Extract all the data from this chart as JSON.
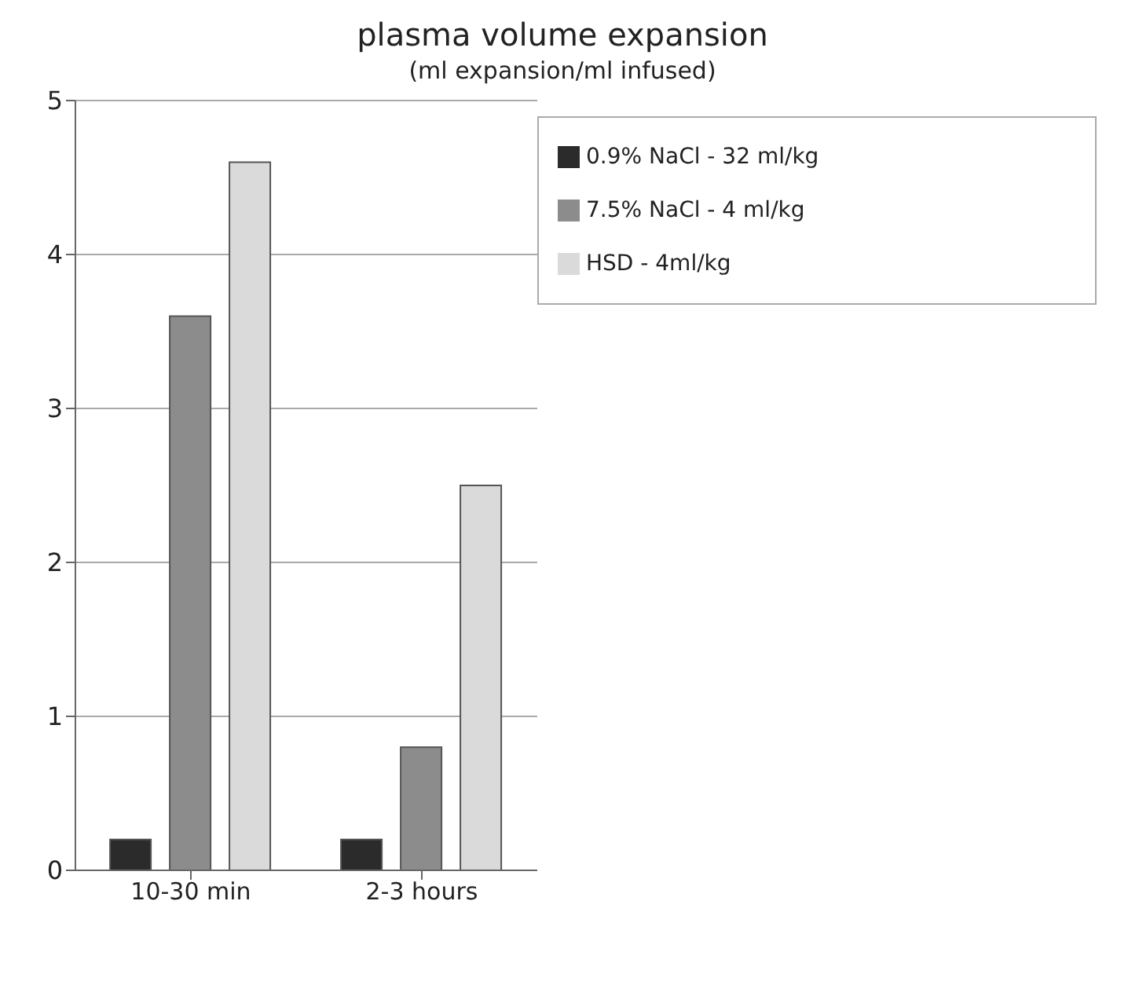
{
  "chart_data": {
    "type": "bar",
    "title": "plasma volume expansion",
    "subtitle": "(ml expansion/ml infused)",
    "categories": [
      "10-30 min",
      "2-3 hours"
    ],
    "series": [
      {
        "name": "0.9% NaCl - 32 ml/kg",
        "color": "#2b2b2b",
        "values": [
          0.2,
          0.2
        ]
      },
      {
        "name": "7.5% NaCl - 4 ml/kg",
        "color": "#8c8c8c",
        "values": [
          3.6,
          0.8
        ]
      },
      {
        "name": "HSD - 4ml/kg",
        "color": "#dadada",
        "values": [
          4.6,
          2.5
        ]
      }
    ],
    "ylim": [
      0,
      5
    ],
    "yticks": [
      0,
      1,
      2,
      3,
      4,
      5
    ],
    "grid": "y",
    "legend": "top right"
  }
}
